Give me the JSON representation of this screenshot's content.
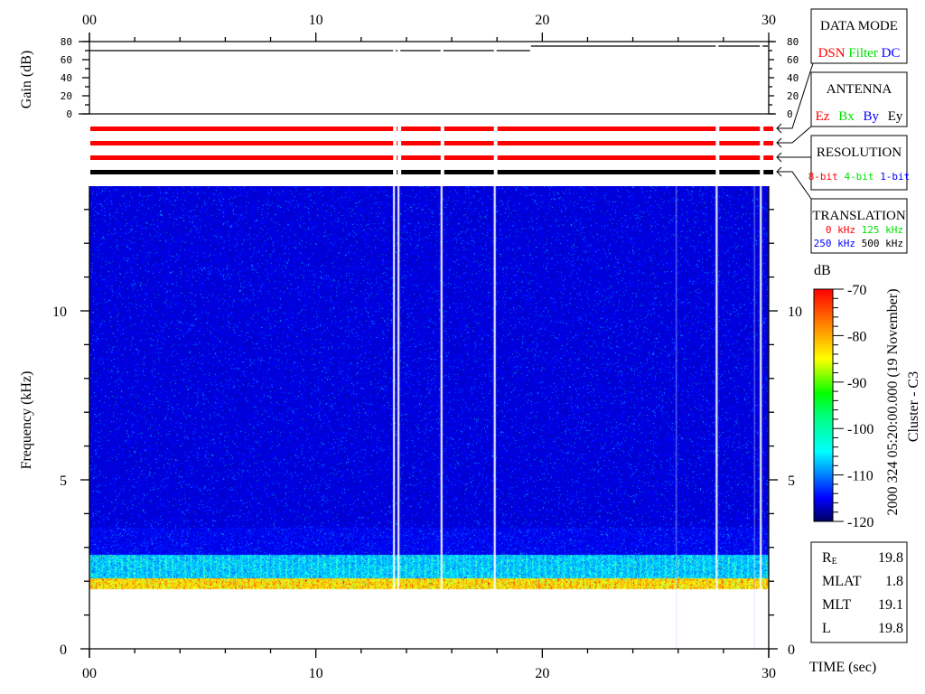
{
  "chart_data": {
    "type": "heatmap",
    "xlabel": "TIME (sec)",
    "ylabel": "Frequency (kHz)",
    "xlim": [
      0,
      30
    ],
    "ylim": [
      0,
      13.7
    ],
    "x_ticks": [
      "00",
      "10",
      "20",
      "30"
    ],
    "y_ticks": [
      "0",
      "5",
      "10"
    ],
    "colorbar": {
      "unit": "dB",
      "range": [
        -120,
        -70
      ],
      "ticks": [
        "-70",
        "-80",
        "-90",
        "-100",
        "-110",
        "-120"
      ],
      "colormap": "jet"
    },
    "gain_panel": {
      "ylabel": "Gain (dB)",
      "ylim": [
        0,
        80
      ],
      "ticks": [
        "80",
        "60",
        "40",
        "20",
        "0"
      ],
      "series": [
        {
          "t_start": 0,
          "t_end": 19.5,
          "gain_db": 70
        },
        {
          "t_start": 19.5,
          "t_end": 30,
          "gain_db": 75
        }
      ]
    },
    "data_gaps_sec": [
      13.45,
      13.65,
      15.55,
      17.9,
      27.7,
      29.65
    ],
    "status_bars": [
      {
        "name": "data-mode",
        "color": "#ff0000"
      },
      {
        "name": "antenna",
        "color": "#ff0000"
      },
      {
        "name": "resolution",
        "color": "#ff0000"
      },
      {
        "name": "translation",
        "color": "#000000"
      }
    ],
    "emission_band_khz": [
      1.8,
      2.8
    ],
    "background_color": "#00005a"
  },
  "legend": {
    "data_mode": {
      "title": "DATA MODE",
      "items": [
        {
          "label": "DSN",
          "color": "#ff0000"
        },
        {
          "label": "Filter",
          "color": "#00e000"
        },
        {
          "label": "DC",
          "color": "#0000ff"
        }
      ]
    },
    "antenna": {
      "title": "ANTENNA",
      "items": [
        {
          "label": "Ez",
          "color": "#ff0000"
        },
        {
          "label": "Bx",
          "color": "#00e000"
        },
        {
          "label": "By",
          "color": "#0000ff"
        },
        {
          "label": "Ey",
          "color": "#000000"
        }
      ]
    },
    "resolution": {
      "title": "RESOLUTION",
      "items": [
        {
          "label": "8-bit",
          "color": "#ff0000"
        },
        {
          "label": "4-bit",
          "color": "#00e000"
        },
        {
          "label": "1-bit",
          "color": "#0000ff"
        }
      ]
    },
    "translation": {
      "title": "TRANSLATION",
      "items": [
        {
          "label": "0 kHz",
          "color": "#ff0000"
        },
        {
          "label": "125 kHz",
          "color": "#00e000"
        },
        {
          "label": "250 kHz",
          "color": "#0000ff"
        },
        {
          "label": "500 kHz",
          "color": "#000000"
        }
      ]
    }
  },
  "timestamp": "2000 324 05:20:00.000 (19 November)",
  "spacecraft": "Cluster - C3",
  "ephemeris": [
    {
      "label": "R",
      "sub": "E",
      "value": "19.8"
    },
    {
      "label": "MLAT",
      "sub": "",
      "value": "1.8"
    },
    {
      "label": "MLT",
      "sub": "",
      "value": "19.1"
    },
    {
      "label": "L",
      "sub": "",
      "value": "19.8"
    }
  ]
}
